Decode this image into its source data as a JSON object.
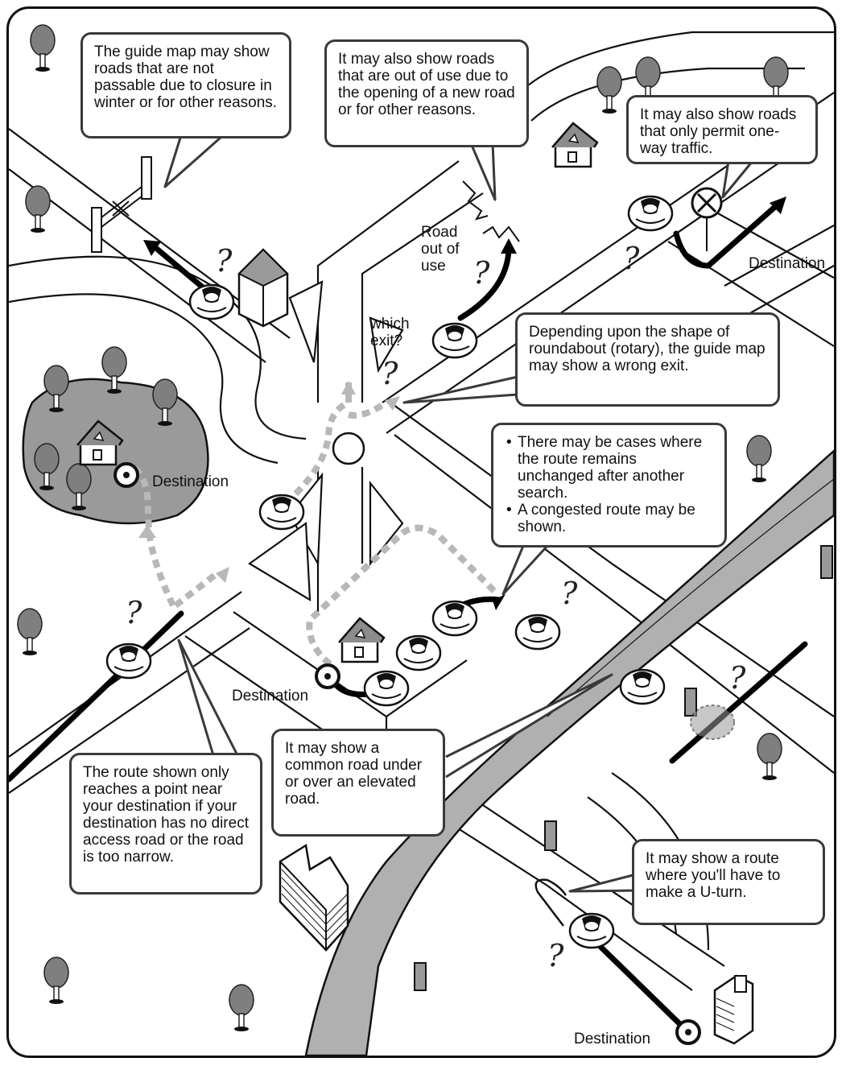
{
  "callouts": {
    "closed_roads": "The guide map may show roads that are not passable due to closure in winter or for other reasons.",
    "out_of_use": "It may also show roads that are out of use due to the opening of a new road or for other reasons.",
    "one_way": "It may also show roads that only permit one-way traffic.",
    "roundabout": "Depending upon the shape of roundabout (rotary), the guide map may show a wrong exit.",
    "route_cases": [
      "There may be cases where the route remains unchanged after another search.",
      "A congested route may be shown."
    ],
    "elevated": "It may show a common road under or over an elevated road.",
    "near_point": "The route shown only reaches a point near your destination if your destination has no direct access road or the road is too narrow.",
    "u_turn": "It may show a route where you'll have to make a U-turn."
  },
  "labels": {
    "road_out_of_use": "Road out of use",
    "which_exit": "which exit?",
    "question_mark": "?",
    "destination": "Destination"
  },
  "colors": {
    "outline": "#111111",
    "route": "#000000",
    "suggested_route": "#b8b8b8",
    "elevated_road": "#b0b0b0",
    "park": "#9a9a9a",
    "tree": "#7f7f7f",
    "callout_border": "#3a3a3a"
  },
  "icons": [
    "car-icon",
    "tree-icon",
    "house-icon",
    "building-icon",
    "gate-icon",
    "no-entry-sign-icon",
    "destination-marker-icon",
    "roundabout-icon"
  ]
}
